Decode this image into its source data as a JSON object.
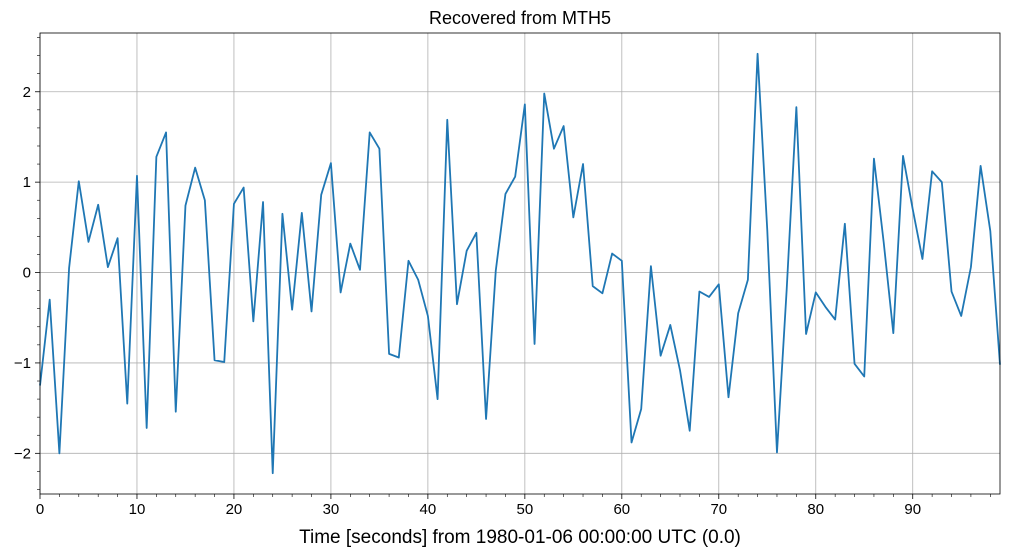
{
  "chart_data": {
    "type": "line",
    "title": "Recovered from MTH5",
    "xlabel": "Time [seconds] from 1980-01-06 00:00:00 UTC (0.0)",
    "ylabel": "",
    "xlim": [
      0,
      99
    ],
    "ylim": [
      -2.45,
      2.65
    ],
    "xticks": [
      0,
      10,
      20,
      30,
      40,
      50,
      60,
      70,
      80,
      90
    ],
    "xtick_labels": [
      "0",
      "10",
      "20",
      "30",
      "40",
      "50",
      "60",
      "70",
      "80",
      "90"
    ],
    "yticks": [
      -2,
      -1,
      0,
      1,
      2
    ],
    "ytick_labels": [
      "−2",
      "−1",
      "0",
      "1",
      "2"
    ],
    "grid": true,
    "series": [
      {
        "name": "Recovered from MTH5",
        "color": "#1f77b4",
        "x": [
          0,
          1,
          2,
          3,
          4,
          5,
          6,
          7,
          8,
          9,
          10,
          11,
          12,
          13,
          14,
          15,
          16,
          17,
          18,
          19,
          20,
          21,
          22,
          23,
          24,
          25,
          26,
          27,
          28,
          29,
          30,
          31,
          32,
          33,
          34,
          35,
          36,
          37,
          38,
          39,
          40,
          41,
          42,
          43,
          44,
          45,
          46,
          47,
          48,
          49,
          50,
          51,
          52,
          53,
          54,
          55,
          56,
          57,
          58,
          59,
          60,
          61,
          62,
          63,
          64,
          65,
          66,
          67,
          68,
          69,
          70,
          71,
          72,
          73,
          74,
          75,
          76,
          77,
          78,
          79,
          80,
          81,
          82,
          83,
          84,
          85,
          86,
          87,
          88,
          89,
          90,
          91,
          92,
          93,
          94,
          95,
          96,
          97,
          98,
          99
        ],
        "values": [
          -1.25,
          -0.3,
          -2.0,
          0.05,
          1.01,
          0.34,
          0.75,
          0.06,
          0.38,
          -1.45,
          1.07,
          -1.72,
          1.28,
          1.55,
          -1.54,
          0.74,
          1.16,
          0.8,
          -0.97,
          -0.99,
          0.76,
          0.94,
          -0.54,
          0.78,
          -2.22,
          0.65,
          -0.41,
          0.66,
          -0.43,
          0.86,
          1.21,
          -0.22,
          0.32,
          0.03,
          1.55,
          1.37,
          -0.9,
          -0.94,
          0.13,
          -0.08,
          -0.48,
          -1.4,
          1.69,
          -0.35,
          0.24,
          0.44,
          -1.62,
          0.02,
          0.87,
          1.06,
          1.86,
          -0.79,
          1.98,
          1.37,
          1.62,
          0.61,
          1.2,
          -0.15,
          -0.23,
          0.21,
          0.13,
          -1.88,
          -1.51,
          0.07,
          -0.92,
          -0.58,
          -1.08,
          -1.75,
          -0.21,
          -0.27,
          -0.13,
          -1.38,
          -0.45,
          -0.08,
          2.42,
          0.47,
          -1.99,
          -0.19,
          1.83,
          -0.68,
          -0.22,
          -0.38,
          -0.52,
          0.54,
          -1.01,
          -1.15,
          1.26,
          0.34,
          -0.67,
          1.29,
          0.7,
          0.15,
          1.12,
          1.0,
          -0.21,
          -0.48,
          0.06,
          1.18,
          0.46,
          -1.02
        ]
      }
    ]
  }
}
